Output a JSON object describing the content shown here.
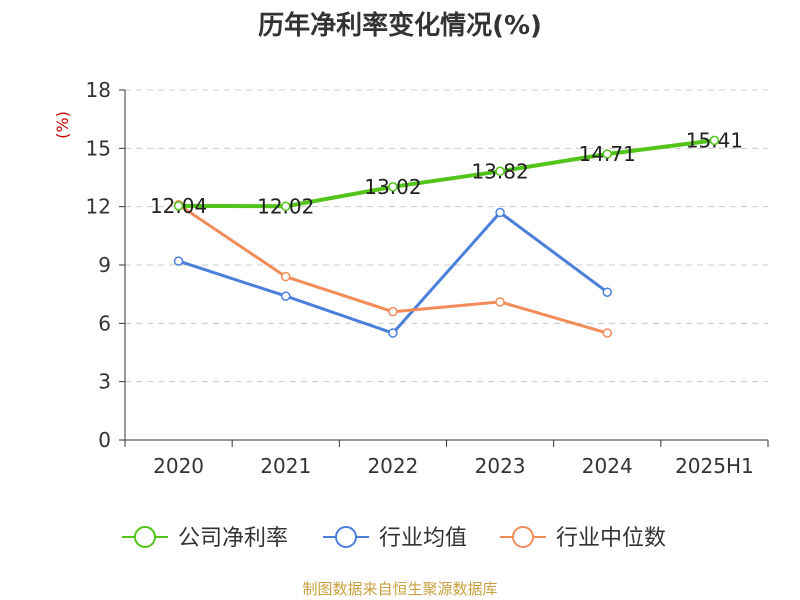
{
  "chart_data": {
    "type": "line",
    "title": "历年净利率变化情况(%)",
    "ylabel": "(%)",
    "xlabel": "",
    "categories": [
      "2020",
      "2021",
      "2022",
      "2023",
      "2024",
      "2025H1"
    ],
    "ylim": [
      0,
      18
    ],
    "yticks": [
      0,
      3,
      6,
      9,
      12,
      15,
      18
    ],
    "grid": "horizontal-dashed",
    "legend_position": "bottom",
    "series": [
      {
        "name": "公司净利率",
        "color": "#52c41a",
        "values": [
          12.04,
          12.02,
          13.02,
          13.82,
          14.71,
          15.41
        ],
        "labels": [
          "12.04",
          "12.02",
          "13.02",
          "13.82",
          "14.71",
          "15.41"
        ]
      },
      {
        "name": "行业均值",
        "color": "#4a7fdc",
        "values": [
          9.2,
          7.4,
          5.5,
          11.7,
          7.6,
          null
        ]
      },
      {
        "name": "行业中位数",
        "color": "#f28c58",
        "values": [
          12.1,
          8.4,
          6.6,
          7.1,
          5.5,
          null
        ]
      }
    ]
  },
  "source": "制图数据来自恒生聚源数据库"
}
